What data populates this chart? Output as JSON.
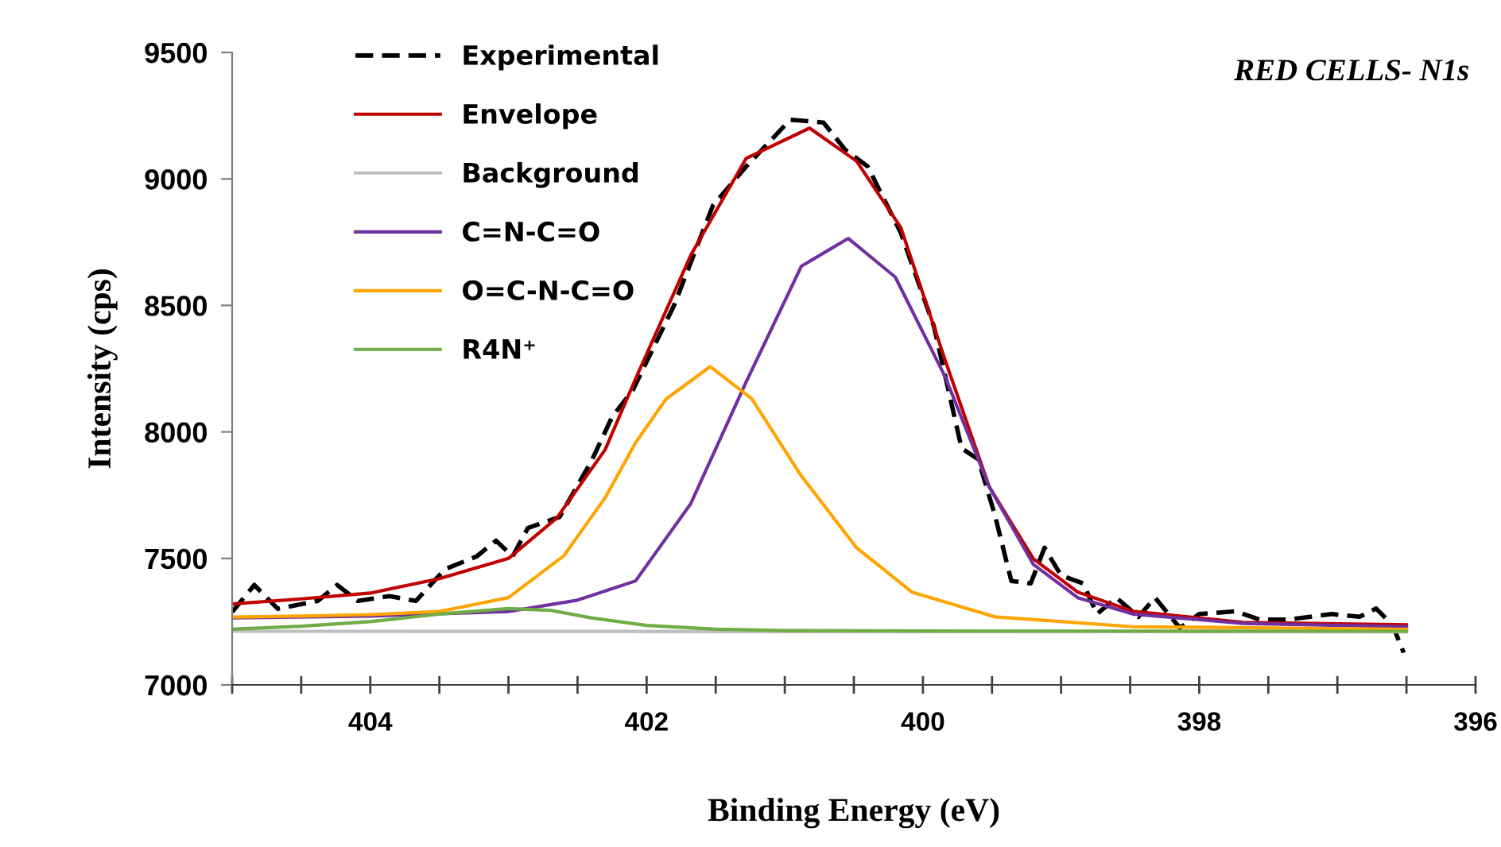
{
  "chart_data": {
    "type": "line",
    "title": "RED CELLS- N1s",
    "xlabel": "Binding Energy (eV)",
    "ylabel": "Intensity (cps)",
    "xlim": [
      405,
      396
    ],
    "xticks": [
      {
        "value": 405,
        "label": null
      },
      {
        "value": 404.5,
        "label": null
      },
      404,
      {
        "value": 403.5,
        "label": null
      },
      {
        "value": 403,
        "label": null
      },
      {
        "value": 402.5,
        "label": null
      },
      402,
      {
        "value": 401.5,
        "label": null
      },
      {
        "value": 401,
        "label": null
      },
      {
        "value": 400.5,
        "label": null
      },
      400,
      {
        "value": 399.5,
        "label": null
      },
      {
        "value": 399,
        "label": null
      },
      {
        "value": 398.5,
        "label": null
      },
      398,
      {
        "value": 397.5,
        "label": null
      },
      {
        "value": 397,
        "label": null
      },
      {
        "value": 396.5,
        "label": null
      },
      396
    ],
    "ylim": [
      7000,
      9500
    ],
    "yticks": [
      7000,
      7500,
      8000,
      8500,
      9000,
      9500
    ],
    "grid": false,
    "legend": "top left",
    "series": [
      {
        "name": "Experimental",
        "color": "#000000",
        "line_style": "dashed",
        "x": [
          405,
          404.84,
          404.67,
          404.38,
          404.24,
          404.09,
          403.86,
          403.67,
          403.46,
          403.23,
          403.09,
          402.97,
          402.86,
          402.63,
          402.4,
          402.25,
          402.1,
          401.8,
          401.52,
          401.28,
          400.96,
          400.72,
          400.56,
          400.4,
          400.16,
          399.92,
          399.72,
          399.6,
          399.48,
          399.36,
          399.22,
          399.12,
          399.0,
          398.84,
          398.74,
          398.6,
          398.44,
          398.32,
          398.14,
          398.0,
          397.74,
          397.56,
          397.36,
          397.04,
          396.84,
          396.72,
          396.6,
          396.52
        ],
        "values": [
          7288,
          7395,
          7301,
          7332,
          7395,
          7332,
          7351,
          7332,
          7457,
          7508,
          7570,
          7508,
          7620,
          7664,
          7884,
          8059,
          8165,
          8502,
          8895,
          9049,
          9234,
          9223,
          9114,
          9049,
          8787,
          8416,
          7935,
          7892,
          7673,
          7411,
          7401,
          7542,
          7433,
          7401,
          7280,
          7345,
          7269,
          7345,
          7225,
          7280,
          7291,
          7258,
          7258,
          7280,
          7269,
          7302,
          7236,
          7127
        ]
      },
      {
        "name": "Envelope",
        "color": "#c00000",
        "x": [
          405,
          404.5,
          404,
          403.5,
          403,
          402.65,
          402.3,
          402.08,
          401.68,
          401.28,
          400.82,
          400.48,
          400.16,
          399.84,
          399.52,
          399.2,
          398.88,
          398.48,
          397.68,
          396.5
        ],
        "values": [
          7320,
          7340,
          7363,
          7420,
          7500,
          7660,
          7930,
          8210,
          8699,
          9081,
          9201,
          9070,
          8808,
          8285,
          7783,
          7498,
          7367,
          7291,
          7247,
          7238
        ]
      },
      {
        "name": "Background",
        "color": "#bfbfbf",
        "x": [
          405,
          396.5
        ],
        "values": [
          7212,
          7210
        ]
      },
      {
        "name": "C=N-C=O",
        "color": "#7030a0",
        "x": [
          405,
          404,
          403,
          402.5,
          402.08,
          401.68,
          401.28,
          400.88,
          400.54,
          400.2,
          399.84,
          399.52,
          399.2,
          398.88,
          398.48,
          397.68,
          396.5
        ],
        "values": [
          7265,
          7272,
          7290,
          7335,
          7411,
          7717,
          8197,
          8655,
          8765,
          8612,
          8219,
          7783,
          7476,
          7345,
          7280,
          7243,
          7230
        ]
      },
      {
        "name": "O=C-N-C=O",
        "color": "#ffa500",
        "x": [
          405,
          404.5,
          404,
          403.5,
          403.0,
          402.6,
          402.3,
          402.08,
          401.86,
          401.54,
          401.24,
          400.88,
          400.48,
          400.08,
          399.48,
          398.48,
          396.5
        ],
        "values": [
          7268,
          7272,
          7278,
          7290,
          7345,
          7510,
          7740,
          7957,
          8130,
          8258,
          8132,
          7826,
          7542,
          7367,
          7269,
          7230,
          7220
        ]
      },
      {
        "name": "R4N⁺",
        "color": "#70ad47",
        "x": [
          405,
          404.5,
          404,
          403.5,
          403.0,
          402.7,
          402.4,
          402.0,
          401.5,
          401,
          400,
          396.5
        ],
        "values": [
          7220,
          7232,
          7250,
          7280,
          7302,
          7295,
          7265,
          7235,
          7220,
          7215,
          7213,
          7212
        ]
      }
    ]
  }
}
